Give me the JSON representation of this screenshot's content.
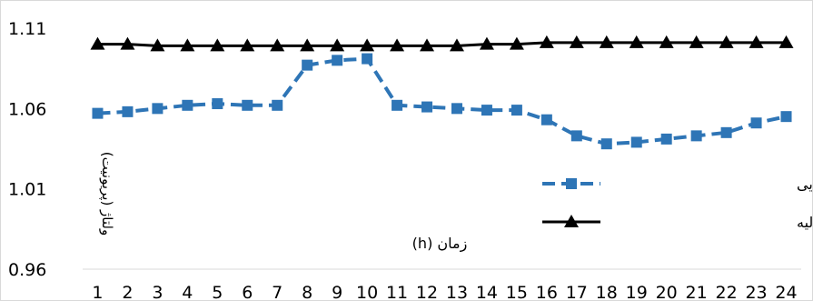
{
  "chart_data": {
    "type": "line",
    "title": "",
    "xlabel": "زمان (h)",
    "ylabel": "ولتاژ (پریونیت)",
    "categories": [
      "1",
      "2",
      "3",
      "4",
      "5",
      "6",
      "7",
      "8",
      "9",
      "10",
      "11",
      "12",
      "13",
      "14",
      "15",
      "16",
      "17",
      "18",
      "19",
      "20",
      "21",
      "22",
      "23",
      "24"
    ],
    "ylim": [
      0.96,
      1.11
    ],
    "y_ticks": [
      "0.96",
      "1.01",
      "1.06",
      "1.11"
    ],
    "grid": false,
    "legend_position": "right",
    "series": [
      {
        "name": "شبکه با قابلیت بازآرایی",
        "style": "dashed",
        "marker": "square",
        "color": "#2e75b6",
        "values": [
          1.057,
          1.058,
          1.06,
          1.062,
          1.063,
          1.062,
          1.062,
          1.087,
          1.09,
          1.091,
          1.062,
          1.061,
          1.06,
          1.059,
          1.059,
          1.053,
          1.043,
          1.038,
          1.039,
          1.041,
          1.043,
          1.045,
          1.051,
          1.055
        ]
      },
      {
        "name": "شبکه با آرایش اولیه",
        "style": "solid",
        "marker": "triangle",
        "color": "#000000",
        "values": [
          1.1,
          1.1,
          1.099,
          1.099,
          1.099,
          1.099,
          1.099,
          1.099,
          1.099,
          1.099,
          1.099,
          1.099,
          1.099,
          1.1,
          1.1,
          1.101,
          1.101,
          1.101,
          1.101,
          1.101,
          1.101,
          1.101,
          1.101,
          1.101
        ]
      }
    ]
  }
}
